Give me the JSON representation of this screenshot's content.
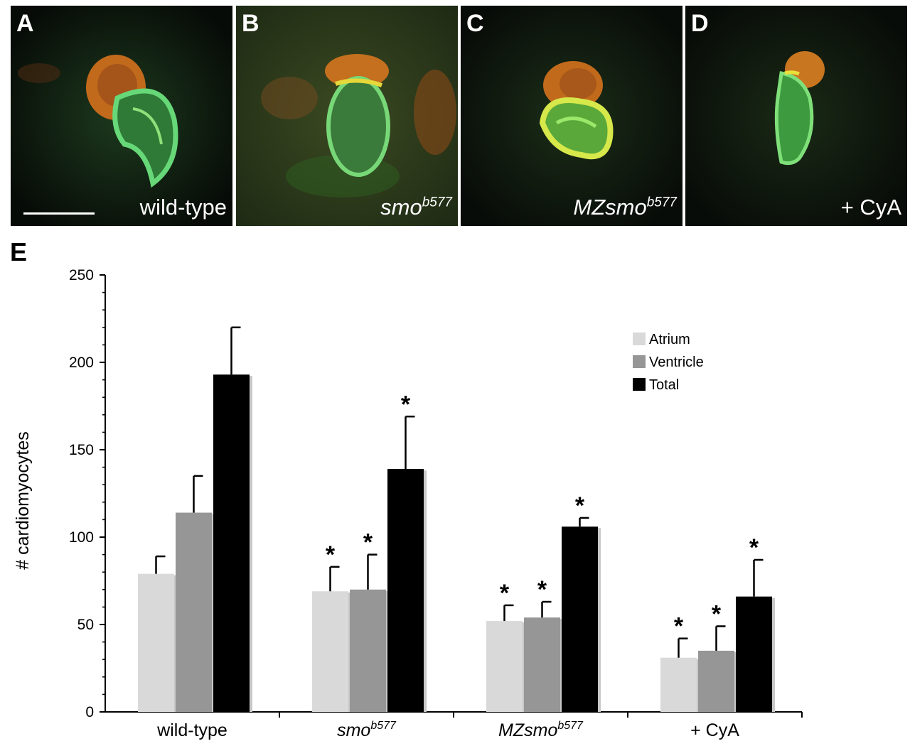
{
  "panels": [
    {
      "label": "A",
      "condition": "wild-type",
      "condition_gene": "",
      "condition_sup": ""
    },
    {
      "label": "B",
      "condition": "",
      "condition_gene": "smo",
      "condition_sup": "b577"
    },
    {
      "label": "C",
      "condition": "",
      "condition_gene": "MZsmo",
      "condition_sup": "b577"
    },
    {
      "label": "D",
      "condition": "+ CyA",
      "condition_gene": "",
      "condition_sup": ""
    }
  ],
  "chart_panel_label": "E",
  "colors": {
    "atrium": "#d9d9d9",
    "ventricle": "#969696",
    "total": "#000000"
  },
  "chart_data": {
    "type": "bar",
    "ylabel": "# cardiomyocytes",
    "xlabel": "",
    "ylim": [
      0,
      250
    ],
    "yticks": [
      "0",
      "50",
      "100",
      "150",
      "200",
      "250"
    ],
    "categories": [
      {
        "text": "wild-type",
        "gene": "",
        "sup": ""
      },
      {
        "text": "",
        "gene": "smo",
        "sup": "b577"
      },
      {
        "text": "",
        "gene": "MZsmo",
        "sup": "b577"
      },
      {
        "text": "+ CyA",
        "gene": "",
        "sup": ""
      }
    ],
    "series": [
      {
        "name": "Atrium",
        "values": [
          79,
          69,
          52,
          31
        ],
        "errors": [
          10,
          14,
          9,
          11
        ],
        "significant": [
          false,
          true,
          true,
          true
        ]
      },
      {
        "name": "Ventricle",
        "values": [
          114,
          70,
          54,
          35
        ],
        "errors": [
          21,
          20,
          9,
          14
        ],
        "significant": [
          false,
          true,
          true,
          true
        ]
      },
      {
        "name": "Total",
        "values": [
          193,
          139,
          106,
          66
        ],
        "errors": [
          27,
          30,
          5,
          21
        ],
        "significant": [
          false,
          true,
          true,
          true
        ]
      }
    ],
    "significance_marker": "*",
    "legend_position": "top-right"
  }
}
